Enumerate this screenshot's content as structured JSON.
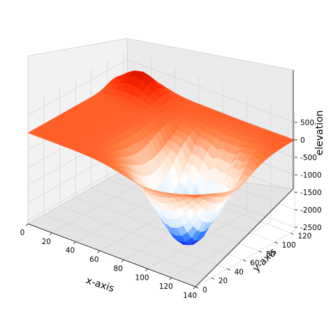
{
  "chart_data": {
    "type": "surface",
    "title": "",
    "xlabel": "x-axis",
    "ylabel": "y-axis",
    "zlabel": "elevation",
    "x_ticks": [
      "0",
      "20",
      "40",
      "60",
      "80",
      "100",
      "120",
      "140"
    ],
    "y_ticks": [
      "0",
      "20",
      "40",
      "60",
      "80",
      "100",
      "120"
    ],
    "z_ticks": [
      "500",
      "0",
      "-500",
      "-1000",
      "-1500",
      "-2000",
      "-2500"
    ],
    "x_range": [
      0,
      140
    ],
    "y_range": [
      0,
      125
    ],
    "z_range": [
      -2600,
      800
    ],
    "grid": true,
    "colormap": "blue-white-red",
    "colormap_stops": [
      "#0000d8",
      "#2e7bff",
      "#d6ecff",
      "#ffffff",
      "#ffd9bf",
      "#ff7a3c",
      "#ff2a00",
      "#c00000"
    ],
    "surface": {
      "description_values": {
        "plateau_elevation": 0,
        "peak_elevation": 600,
        "trough_elevation": -2550,
        "trough_center_x": 100,
        "trough_center_y": 50
      }
    }
  }
}
